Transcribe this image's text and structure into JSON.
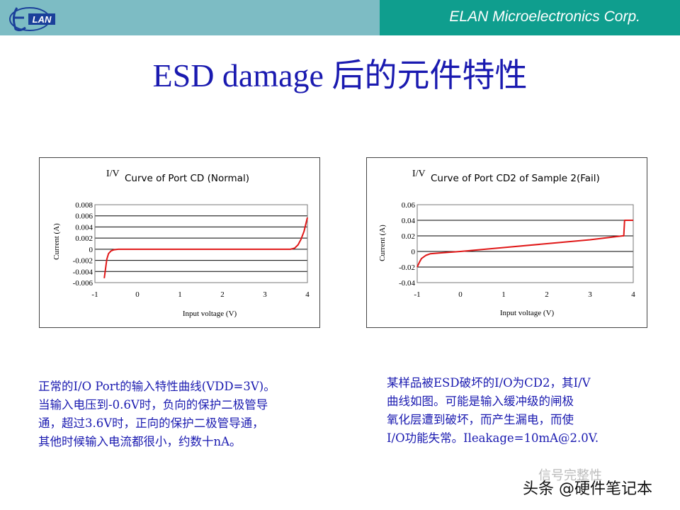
{
  "header": {
    "company": "ELAN Microelectronics Corp.",
    "logo_text": "LAN"
  },
  "slide": {
    "title": "ESD damage 后的元件特性"
  },
  "chart_data": [
    {
      "type": "line",
      "title_prefix": "I/V",
      "title": "Curve of Port CD (Normal)",
      "xlabel": "Input voltage (V)",
      "ylabel": "Current (A)",
      "xlim": [
        -1,
        4
      ],
      "ylim": [
        -0.006,
        0.008
      ],
      "x_ticks": [
        "-1",
        "0",
        "1",
        "2",
        "3",
        "4"
      ],
      "y_ticks": [
        "0.008",
        "0.006",
        "0.004",
        "0.002",
        "0",
        "-0.002",
        "-0.004",
        "-0.006"
      ],
      "grid": true,
      "series": [
        {
          "color": "#e01818",
          "x": [
            -0.78,
            -0.75,
            -0.72,
            -0.68,
            -0.62,
            -0.55,
            -0.45,
            0,
            1,
            2,
            3,
            3.6,
            3.7,
            3.78,
            3.85,
            3.92,
            4.0
          ],
          "y": [
            -0.0052,
            -0.0035,
            -0.0018,
            -0.0008,
            -0.0003,
            -0.0001,
            0,
            0,
            0,
            0,
            0,
            0,
            0.0002,
            0.0008,
            0.0018,
            0.0032,
            0.0057
          ]
        }
      ]
    },
    {
      "type": "line",
      "title_prefix": "I/V",
      "title": "Curve of Port CD2 of Sample 2(Fail)",
      "xlabel": "Input voltage (V)",
      "ylabel": "Current (A)",
      "xlim": [
        -1,
        4
      ],
      "ylim": [
        -0.04,
        0.06
      ],
      "x_ticks": [
        "-1",
        "0",
        "1",
        "2",
        "3",
        "4"
      ],
      "y_ticks": [
        "0.06",
        "0.04",
        "0.02",
        "0",
        "-0.02",
        "-0.04"
      ],
      "grid": true,
      "series": [
        {
          "color": "#e01818",
          "x": [
            -1.0,
            -0.95,
            -0.9,
            -0.8,
            -0.7,
            -0.5,
            0,
            1,
            2,
            3,
            3.75,
            3.78,
            3.8,
            4.0
          ],
          "y": [
            -0.02,
            -0.014,
            -0.009,
            -0.005,
            -0.003,
            -0.002,
            0.0,
            0.005,
            0.01,
            0.015,
            0.02,
            0.02,
            0.04,
            0.04
          ]
        }
      ]
    }
  ],
  "descriptions": {
    "left": "正常的I/O Port的输入特性曲线(VDD=3V)。\n当输入电压到-0.6V时，负向的保护二极管导\n通，超过3.6V时，正向的保护二极管导通，\n其他时候输入电流都很小，约数十nA。",
    "right": "某样品被ESD破坏的I/O为CD2，其I/V\n曲线如图。可能是输入缓冲级的闸极\n氧化层遭到破坏，而产生漏电，而使\nI/O功能失常。Ileakage=10mA@2.0V."
  },
  "watermark": {
    "main": "头条 @硬件笔记本",
    "faint": "信号完整性"
  }
}
